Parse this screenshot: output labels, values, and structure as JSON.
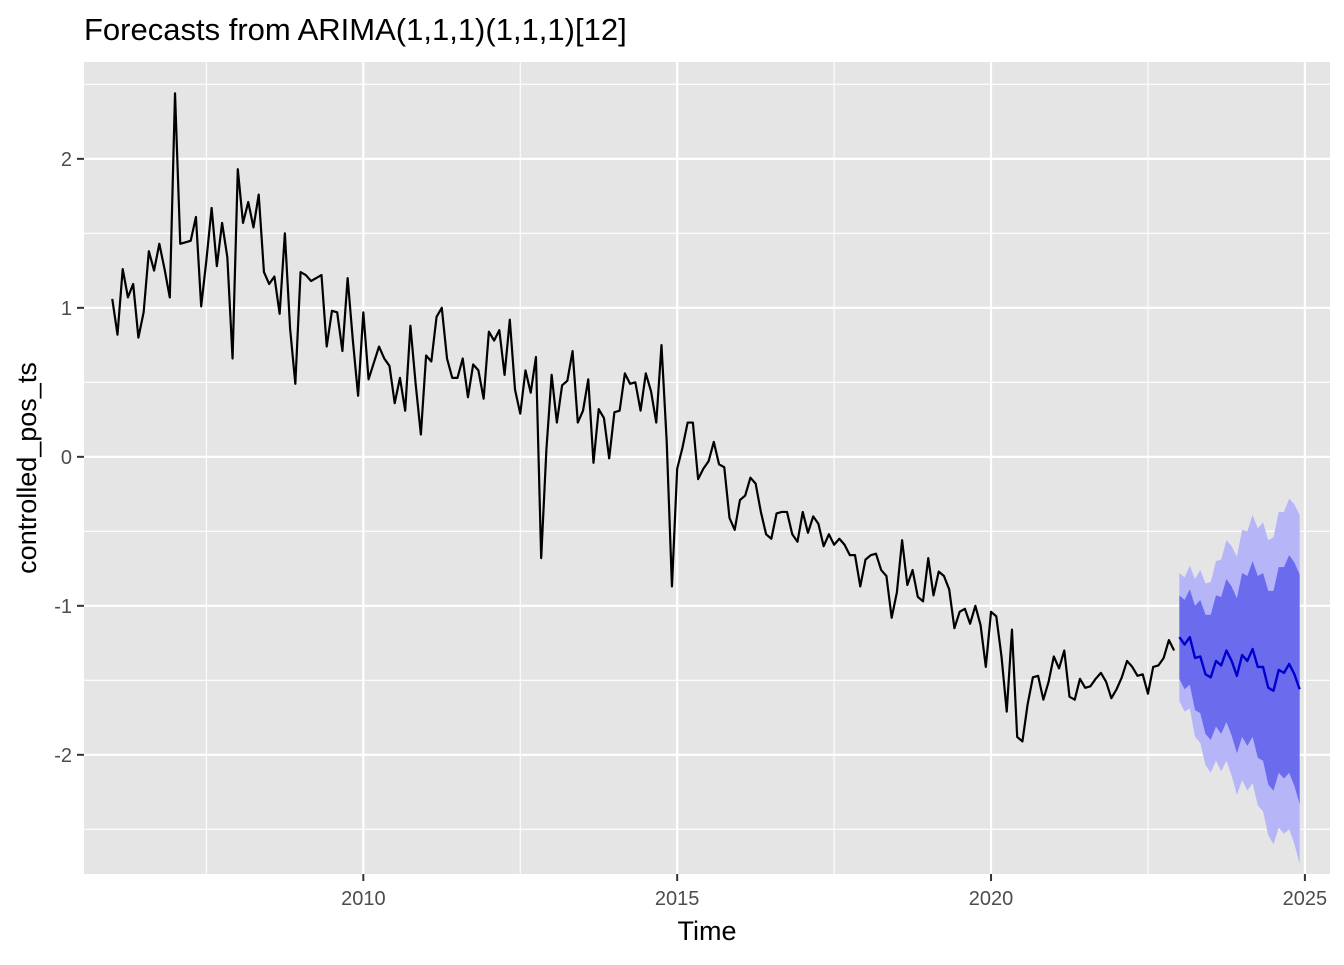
{
  "chart_data": {
    "type": "line",
    "title": "Forecasts from ARIMA(1,1,1)(1,1,1)[12]",
    "xlabel": "Time",
    "ylabel": "controlled_pos_ts",
    "xlim": [
      2005.55,
      2025.4
    ],
    "ylim": [
      -2.8,
      2.65
    ],
    "x_ticks": [
      2010,
      2015,
      2020,
      2025
    ],
    "x_tick_labels": [
      "2010",
      "2015",
      "2020",
      "2025"
    ],
    "y_ticks": [
      -2,
      -1,
      0,
      1,
      2
    ],
    "y_tick_labels": [
      "-2",
      "-1",
      "0",
      "1",
      "2"
    ],
    "grid": true,
    "legend": "none",
    "colors": {
      "panel": "#e5e5e5",
      "grid": "#ffffff",
      "history": "#000000",
      "forecast": "#0000cc",
      "band_80": "#6b6bee",
      "band_95": "#b5b5f8",
      "axis_text": "#4d4d4d",
      "title_text": "#000000"
    },
    "history_start": 2006.0,
    "history_step": 0.08333333,
    "history_values": [
      1.06,
      0.82,
      1.26,
      1.07,
      1.16,
      0.8,
      0.97,
      1.38,
      1.25,
      1.43,
      1.26,
      1.07,
      2.44,
      1.43,
      1.44,
      1.45,
      1.61,
      1.01,
      1.32,
      1.67,
      1.28,
      1.57,
      1.34,
      0.66,
      1.93,
      1.57,
      1.71,
      1.54,
      1.76,
      1.24,
      1.16,
      1.21,
      0.96,
      1.5,
      0.86,
      0.49,
      1.24,
      1.22,
      1.18,
      1.2,
      1.22,
      0.74,
      0.98,
      0.97,
      0.71,
      1.2,
      0.78,
      0.41,
      0.97,
      0.52,
      0.63,
      0.74,
      0.66,
      0.61,
      0.36,
      0.53,
      0.31,
      0.88,
      0.49,
      0.15,
      0.68,
      0.64,
      0.94,
      1.0,
      0.66,
      0.53,
      0.53,
      0.66,
      0.4,
      0.62,
      0.58,
      0.39,
      0.84,
      0.78,
      0.85,
      0.55,
      0.92,
      0.45,
      0.29,
      0.58,
      0.43,
      0.67,
      -0.68,
      0.05,
      0.55,
      0.23,
      0.48,
      0.51,
      0.71,
      0.23,
      0.31,
      0.52,
      -0.04,
      0.32,
      0.26,
      -0.01,
      0.3,
      0.31,
      0.56,
      0.49,
      0.5,
      0.31,
      0.56,
      0.44,
      0.23,
      0.75,
      0.1,
      -0.87,
      -0.08,
      0.06,
      0.23,
      0.23,
      -0.15,
      -0.08,
      -0.03,
      0.1,
      -0.05,
      -0.07,
      -0.41,
      -0.49,
      -0.29,
      -0.26,
      -0.14,
      -0.18,
      -0.37,
      -0.52,
      -0.55,
      -0.38,
      -0.37,
      -0.37,
      -0.52,
      -0.57,
      -0.37,
      -0.51,
      -0.4,
      -0.45,
      -0.6,
      -0.52,
      -0.59,
      -0.55,
      -0.59,
      -0.66,
      -0.66,
      -0.87,
      -0.69,
      -0.66,
      -0.65,
      -0.76,
      -0.8,
      -1.08,
      -0.91,
      -0.56,
      -0.86,
      -0.76,
      -0.94,
      -0.97,
      -0.68,
      -0.93,
      -0.77,
      -0.8,
      -0.89,
      -1.15,
      -1.04,
      -1.02,
      -1.12,
      -1.0,
      -1.13,
      -1.41,
      -1.04,
      -1.07,
      -1.34,
      -1.71,
      -1.16,
      -1.88,
      -1.91,
      -1.66,
      -1.48,
      -1.47,
      -1.63,
      -1.51,
      -1.34,
      -1.42,
      -1.3,
      -1.61,
      -1.63,
      -1.49,
      -1.55,
      -1.54,
      -1.49,
      -1.45,
      -1.51,
      -1.62,
      -1.56,
      -1.48,
      -1.37,
      -1.41,
      -1.47,
      -1.46,
      -1.59,
      -1.41,
      -1.4,
      -1.35,
      -1.23,
      -1.3
    ],
    "forecast_start": 2023.0,
    "forecast_step": 0.08333333,
    "forecast_mean": [
      -1.21,
      -1.26,
      -1.21,
      -1.35,
      -1.34,
      -1.46,
      -1.48,
      -1.37,
      -1.4,
      -1.3,
      -1.37,
      -1.47,
      -1.33,
      -1.37,
      -1.29,
      -1.41,
      -1.41,
      -1.55,
      -1.57,
      -1.43,
      -1.45,
      -1.39,
      -1.46,
      -1.56
    ],
    "lo80": [
      -1.49,
      -1.56,
      -1.53,
      -1.7,
      -1.72,
      -1.86,
      -1.9,
      -1.81,
      -1.86,
      -1.78,
      -1.87,
      -1.99,
      -1.88,
      -1.94,
      -1.88,
      -2.02,
      -2.04,
      -2.2,
      -2.24,
      -2.12,
      -2.16,
      -2.12,
      -2.21,
      -2.33
    ],
    "hi80": [
      -0.93,
      -0.96,
      -0.89,
      -1.0,
      -0.96,
      -1.06,
      -1.06,
      -0.93,
      -0.94,
      -0.82,
      -0.87,
      -0.95,
      -0.78,
      -0.8,
      -0.7,
      -0.8,
      -0.78,
      -0.9,
      -0.9,
      -0.74,
      -0.74,
      -0.66,
      -0.71,
      -0.79
    ],
    "lo95": [
      -1.64,
      -1.71,
      -1.69,
      -1.88,
      -1.92,
      -2.07,
      -2.12,
      -2.04,
      -2.11,
      -2.04,
      -2.14,
      -2.27,
      -2.17,
      -2.24,
      -2.19,
      -2.34,
      -2.38,
      -2.54,
      -2.6,
      -2.49,
      -2.53,
      -2.5,
      -2.6,
      -2.73
    ],
    "hi95": [
      -0.78,
      -0.81,
      -0.73,
      -0.82,
      -0.76,
      -0.85,
      -0.84,
      -0.7,
      -0.69,
      -0.56,
      -0.6,
      -0.67,
      -0.49,
      -0.5,
      -0.39,
      -0.48,
      -0.44,
      -0.56,
      -0.54,
      -0.37,
      -0.37,
      -0.28,
      -0.32,
      -0.39
    ]
  }
}
